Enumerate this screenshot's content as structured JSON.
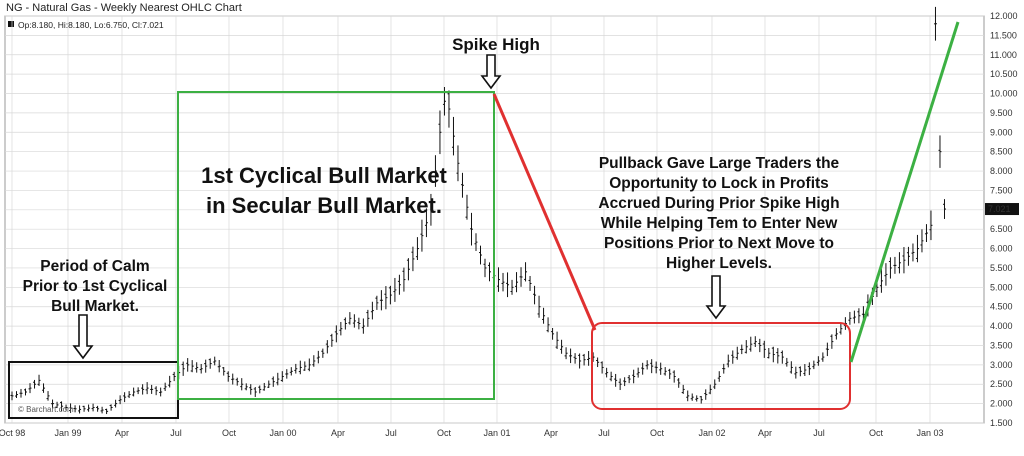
{
  "chart_data": {
    "type": "ohlc",
    "title": "NG - Natural Gas - Weekly Nearest OHLC Chart",
    "ohlc_readout": "Op:8.180, Hi:8.180, Lo:6.750, Cl:7.021",
    "last_price_label": "7.021",
    "ylim": [
      1.5,
      12.0
    ],
    "y_ticks": [
      "1.500",
      "2.000",
      "2.500",
      "3.000",
      "3.500",
      "4.000",
      "4.500",
      "5.000",
      "5.500",
      "6.000",
      "6.500",
      "7.000",
      "7.500",
      "8.000",
      "8.500",
      "9.000",
      "9.500",
      "10.000",
      "10.500",
      "11.000",
      "11.500",
      "12.000"
    ],
    "x_ticks": [
      "Oct 98",
      "Jan 99",
      "Apr",
      "Jul",
      "Oct",
      "Jan 00",
      "Apr",
      "Jul",
      "Oct",
      "Jan 01",
      "Apr",
      "Jul",
      "Oct",
      "Jan 02",
      "Apr",
      "Jul",
      "Oct",
      "Jan 03"
    ],
    "grid": true,
    "watermark": "© Barchart.com",
    "price_path": [
      [
        0,
        2.2
      ],
      [
        3,
        2.3
      ],
      [
        6,
        2.6
      ],
      [
        9,
        2.0
      ],
      [
        12,
        1.9
      ],
      [
        15,
        1.85
      ],
      [
        18,
        1.9
      ],
      [
        21,
        1.8
      ],
      [
        24,
        2.1
      ],
      [
        27,
        2.3
      ],
      [
        30,
        2.4
      ],
      [
        33,
        2.3
      ],
      [
        36,
        2.7
      ],
      [
        39,
        3.0
      ],
      [
        42,
        2.9
      ],
      [
        45,
        3.1
      ],
      [
        48,
        2.7
      ],
      [
        51,
        2.5
      ],
      [
        54,
        2.3
      ],
      [
        57,
        2.5
      ],
      [
        60,
        2.7
      ],
      [
        63,
        2.9
      ],
      [
        66,
        3.0
      ],
      [
        69,
        3.3
      ],
      [
        72,
        3.8
      ],
      [
        75,
        4.2
      ],
      [
        78,
        4.0
      ],
      [
        81,
        4.6
      ],
      [
        84,
        4.8
      ],
      [
        87,
        5.2
      ],
      [
        90,
        6.0
      ],
      [
        93,
        7.0
      ],
      [
        95,
        9.0
      ],
      [
        96,
        9.8
      ],
      [
        97,
        9.6
      ],
      [
        99,
        8.2
      ],
      [
        102,
        6.5
      ],
      [
        105,
        5.5
      ],
      [
        108,
        5.2
      ],
      [
        111,
        5.0
      ],
      [
        114,
        5.4
      ],
      [
        117,
        4.5
      ],
      [
        120,
        3.8
      ],
      [
        123,
        3.3
      ],
      [
        126,
        3.1
      ],
      [
        129,
        3.2
      ],
      [
        132,
        2.8
      ],
      [
        135,
        2.5
      ],
      [
        138,
        2.7
      ],
      [
        141,
        3.0
      ],
      [
        144,
        2.9
      ],
      [
        147,
        2.7
      ],
      [
        150,
        2.2
      ],
      [
        153,
        2.1
      ],
      [
        156,
        2.5
      ],
      [
        159,
        3.1
      ],
      [
        162,
        3.4
      ],
      [
        165,
        3.6
      ],
      [
        168,
        3.3
      ],
      [
        171,
        3.2
      ],
      [
        174,
        2.8
      ],
      [
        177,
        2.9
      ],
      [
        180,
        3.2
      ],
      [
        183,
        3.8
      ],
      [
        186,
        4.2
      ],
      [
        189,
        4.3
      ],
      [
        192,
        5.0
      ],
      [
        195,
        5.5
      ],
      [
        198,
        5.7
      ],
      [
        201,
        6.0
      ],
      [
        204,
        6.6
      ],
      [
        205,
        11.8
      ],
      [
        206,
        8.5
      ],
      [
        207,
        7.02
      ]
    ],
    "annotations": {
      "spike_high": "Spike High",
      "cyclical_bull": [
        "1st Cyclical Bull Market",
        "in Secular Bull Market."
      ],
      "period_calm": [
        "Period of Calm",
        "Prior to 1st Cyclical",
        "Bull Market."
      ],
      "pullback": [
        "Pullback Gave Large Traders the",
        "Opportunity to Lock in Profits",
        "Accrued During Prior Spike High",
        "While Helping Tem to Enter New",
        "Positions Prior to Next Move to",
        "Higher Levels."
      ]
    },
    "colors": {
      "bars": "#111111",
      "green": "#3cb043",
      "red": "#e03030",
      "black_box": "#111111",
      "price_box": "#111111",
      "grid": "#d8d8d8"
    }
  }
}
